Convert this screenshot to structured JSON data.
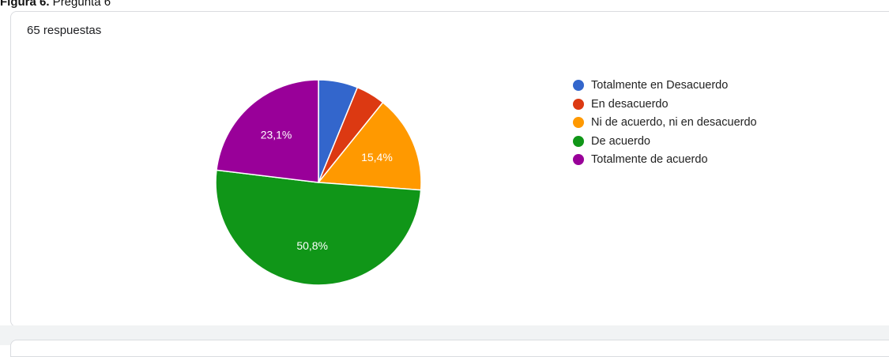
{
  "caption": {
    "prefix": "Figura 6.",
    "text": " Pregunta 6"
  },
  "responses_label": "65 respuestas",
  "chart_data": {
    "type": "pie",
    "title": "",
    "categories": [
      "Totalmente en Desacuerdo",
      "En desacuerdo",
      "Ni de acuerdo, ni en desacuerdo",
      "De acuerdo",
      "Totalmente de acuerdo"
    ],
    "values": [
      6.2,
      4.6,
      15.4,
      50.8,
      23.1
    ],
    "data_labels": [
      "",
      "",
      "15,4%",
      "50,8%",
      "23,1%"
    ],
    "colors": [
      "#3366cc",
      "#dc3912",
      "#ff9900",
      "#109618",
      "#990099"
    ],
    "start_angle_deg": 90,
    "direction": "clockwise",
    "legend_position": "right"
  }
}
